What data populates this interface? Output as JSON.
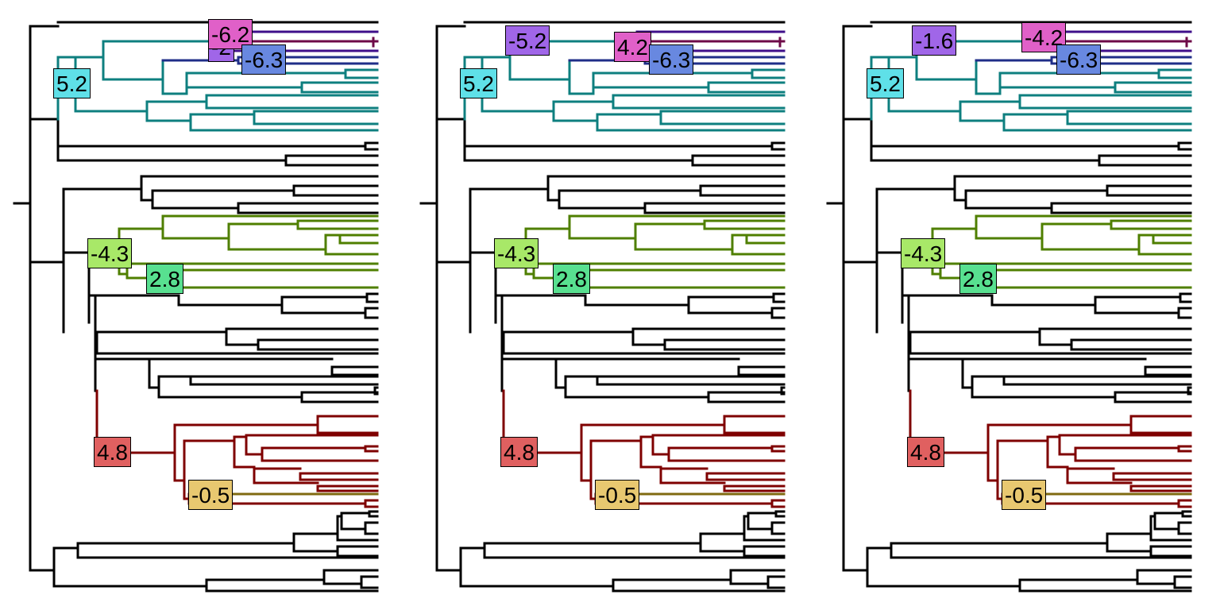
{
  "colors": {
    "base": "#000000",
    "teal": "#0e7f7f",
    "purple": "#3f0f8a",
    "magenta": "#6e0a48",
    "navy": "#1f2e88",
    "green": "#4f7f00",
    "darkred": "#7f0000",
    "olive": "#7f6a10"
  },
  "label_colors": {
    "cyan": "#5fe0e8",
    "purple": "#a066e8",
    "pink": "#e060c8",
    "blue": "#6888e0",
    "lime": "#a8e868",
    "mint": "#58e090",
    "red": "#e06060",
    "gold": "#e8c870"
  },
  "panels": [
    {
      "labels": {
        "cyan": "5.2",
        "purple": "-2",
        "pink": "-6.2",
        "blue": "-6.3",
        "lime": "-4.3",
        "mint": "2.8",
        "red": "4.8",
        "gold": "-0.5"
      }
    },
    {
      "labels": {
        "cyan": "5.2",
        "purple": "-5.2",
        "pink": "4.2",
        "blue": "-6.3",
        "lime": "-4.3",
        "mint": "2.8",
        "red": "4.8",
        "gold": "-0.5"
      }
    },
    {
      "labels": {
        "cyan": "5.2",
        "purple": "-1.6",
        "pink": "-4.2",
        "blue": "-6.3",
        "lime": "-4.3",
        "mint": "2.8",
        "red": "4.8",
        "gold": "-0.5"
      }
    }
  ]
}
